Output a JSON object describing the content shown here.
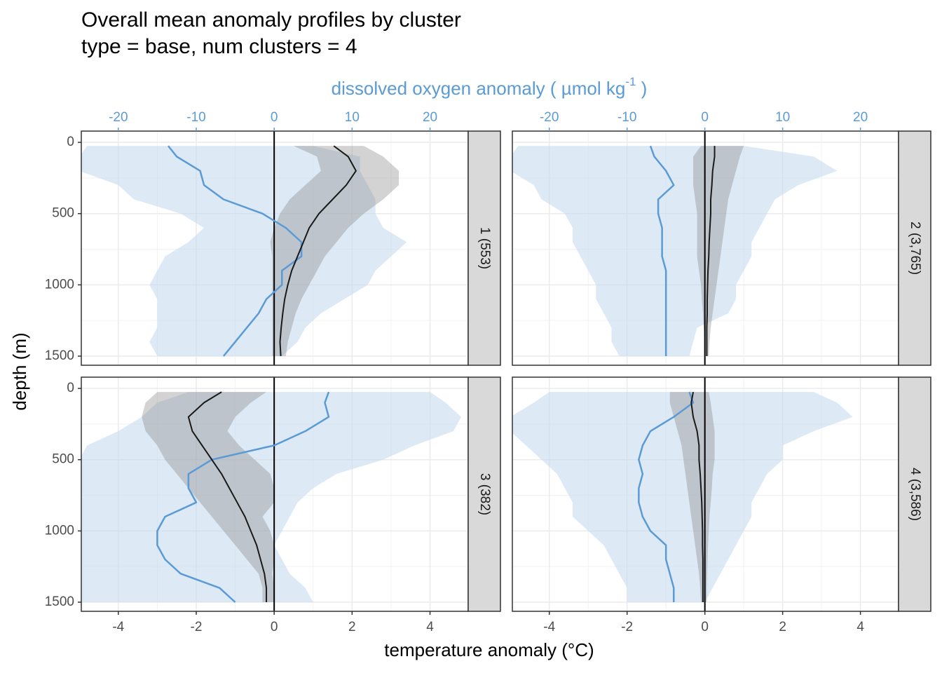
{
  "chart_data": {
    "type": "line",
    "title": "Overall mean anomaly profiles by cluster",
    "subtitle": "type = base, num clusters = 4",
    "x_label": "temperature anomaly (°C)",
    "x2_label": "dissolved oxygen anomaly ( µmol kg",
    "x2_label_sup": "-1",
    "x2_label_end": " )",
    "y_label": "depth (m)",
    "xlim": [
      -4.95,
      4.98
    ],
    "xticks": [
      -4,
      -2,
      0,
      2,
      4
    ],
    "x2lim": [
      -24.75,
      24.9
    ],
    "x2ticks": [
      -20,
      -10,
      0,
      10,
      20
    ],
    "ylim": [
      1564,
      -79
    ],
    "yticks": [
      0,
      500,
      1000,
      1500
    ],
    "grid": true,
    "reference_line": 0,
    "temperature_color": "#1a1a1a",
    "temperature_band_color": "#808080",
    "oxygen_color": "#5b9bd5",
    "oxygen_band_color": "#c6dbef",
    "depth": [
      25,
      100,
      200,
      300,
      400,
      500,
      600,
      700,
      800,
      900,
      1000,
      1100,
      1200,
      1300,
      1400,
      1500
    ],
    "panels": [
      {
        "label": "1 (553)",
        "temperature": {
          "values": [
            1.53,
            1.9,
            2.1,
            1.85,
            1.5,
            1.15,
            0.9,
            0.75,
            0.6,
            0.45,
            0.35,
            0.27,
            0.22,
            0.18,
            0.15,
            0.17
          ],
          "lower": [
            0.5,
            1.1,
            1.2,
            0.8,
            0.4,
            0.15,
            0,
            -0.1,
            -0.05,
            -0.05,
            -0.05,
            -0.05,
            -0.05,
            -0.05,
            -0.05,
            -0.05
          ],
          "upper": [
            2.3,
            2.8,
            3.2,
            3.2,
            2.8,
            2.3,
            1.9,
            1.6,
            1.3,
            1.1,
            0.9,
            0.7,
            0.55,
            0.45,
            0.35,
            0.3
          ]
        },
        "oxygen": {
          "values": [
            -13.6,
            -12.5,
            -9.5,
            -9,
            -6.5,
            -1.5,
            1.5,
            3.5,
            3.5,
            1,
            1,
            -1,
            -2,
            -3.5,
            -5,
            -6.5
          ],
          "lower": [
            -24,
            -25,
            -25,
            -20,
            -18,
            -12,
            -9,
            -11,
            -14,
            -15,
            -16,
            -15,
            -15,
            -15,
            -16,
            -15
          ],
          "upper": [
            5,
            11,
            11,
            12,
            13,
            13,
            14,
            17,
            15,
            13,
            12,
            9,
            6,
            4,
            3,
            1
          ]
        }
      },
      {
        "label": "2 (3,765)",
        "temperature": {
          "values": [
            0.25,
            0.25,
            0.2,
            0.18,
            0.15,
            0.15,
            0.13,
            0.11,
            0.1,
            0.08,
            0.07,
            0.06,
            0.06,
            0.05,
            0.05,
            0.05
          ],
          "lower": [
            -0.1,
            -0.3,
            -0.3,
            -0.3,
            -0.25,
            -0.2,
            -0.2,
            -0.2,
            -0.2,
            -0.15,
            -0.1,
            -0.08,
            -0.05,
            -0.03,
            0,
            0
          ],
          "upper": [
            1.0,
            0.9,
            0.8,
            0.7,
            0.6,
            0.55,
            0.5,
            0.45,
            0.4,
            0.35,
            0.3,
            0.25,
            0.2,
            0.15,
            0.12,
            0.1
          ]
        },
        "oxygen": {
          "values": [
            -7,
            -6.5,
            -5,
            -4,
            -6,
            -6,
            -5.5,
            -5.5,
            -5.5,
            -5,
            -5,
            -5,
            -5,
            -5,
            -5,
            -5
          ],
          "lower": [
            -24,
            -25,
            -25,
            -22,
            -21,
            -18,
            -17,
            -17,
            -16,
            -15,
            -14,
            -14,
            -13,
            -12,
            -12,
            -11
          ],
          "upper": [
            5,
            14,
            17,
            12,
            9,
            8,
            7,
            6,
            6,
            5,
            4,
            4,
            3,
            -1,
            -1.5,
            -2
          ]
        }
      },
      {
        "label": "3 (382)",
        "temperature": {
          "values": [
            -1.35,
            -1.8,
            -2.2,
            -2.1,
            -1.85,
            -1.6,
            -1.35,
            -1.15,
            -0.95,
            -0.75,
            -0.6,
            -0.45,
            -0.35,
            -0.25,
            -0.2,
            -0.2
          ],
          "lower": [
            -3.0,
            -3.3,
            -3.4,
            -3.3,
            -3.0,
            -2.8,
            -2.5,
            -2.2,
            -1.9,
            -1.6,
            -1.3,
            -1.0,
            -0.7,
            -0.4,
            -0.3,
            -0.3
          ],
          "upper": [
            -0.2,
            -0.6,
            -1.0,
            -1.2,
            -0.9,
            -0.5,
            -0.1,
            0,
            0,
            -0.3,
            -0.1,
            0,
            0,
            -0.05,
            0,
            0
          ]
        },
        "oxygen": {
          "values": [
            7,
            6.5,
            7,
            4,
            0,
            -8,
            -11,
            -11,
            -10,
            -14,
            -15,
            -15,
            -14,
            -12,
            -7,
            -5
          ],
          "lower": [
            -11,
            -15,
            -17,
            -20,
            -24,
            -25,
            -25,
            -25,
            -25,
            -25,
            -25,
            -25,
            -25,
            -25,
            -25,
            -25
          ],
          "upper": [
            20,
            22,
            24,
            23,
            18,
            14,
            8,
            5,
            3,
            2,
            1,
            0,
            1,
            2,
            4,
            5
          ]
        }
      },
      {
        "label": "4 (3,586)",
        "temperature": {
          "values": [
            -0.3,
            -0.35,
            -0.3,
            -0.2,
            -0.15,
            -0.15,
            -0.12,
            -0.1,
            -0.08,
            -0.07,
            -0.06,
            -0.06,
            -0.05,
            -0.05,
            -0.05,
            -0.05
          ],
          "lower": [
            -0.9,
            -0.9,
            -0.8,
            -0.7,
            -0.6,
            -0.55,
            -0.5,
            -0.45,
            -0.4,
            -0.35,
            -0.3,
            -0.25,
            -0.2,
            -0.15,
            -0.12,
            -0.1
          ],
          "upper": [
            0.1,
            0.15,
            0.2,
            0.25,
            0.25,
            0.25,
            0.2,
            0.18,
            0.15,
            0.12,
            0.1,
            0.08,
            0.07,
            0.06,
            0.05,
            0.05
          ]
        },
        "oxygen": {
          "values": [
            -2,
            -1.5,
            -4,
            -7,
            -8,
            -8.5,
            -8,
            -8.5,
            -8.5,
            -8,
            -7,
            -5,
            -5,
            -4.5,
            -4,
            -4
          ],
          "lower": [
            -20,
            -22,
            -25,
            -25,
            -23,
            -21,
            -19,
            -18,
            -17,
            -17,
            -15,
            -13,
            -12,
            -11,
            -10,
            -10
          ],
          "upper": [
            14,
            17,
            19,
            14,
            10,
            10,
            8,
            7,
            6,
            6,
            5,
            4,
            3,
            2,
            1,
            0
          ]
        }
      }
    ]
  }
}
